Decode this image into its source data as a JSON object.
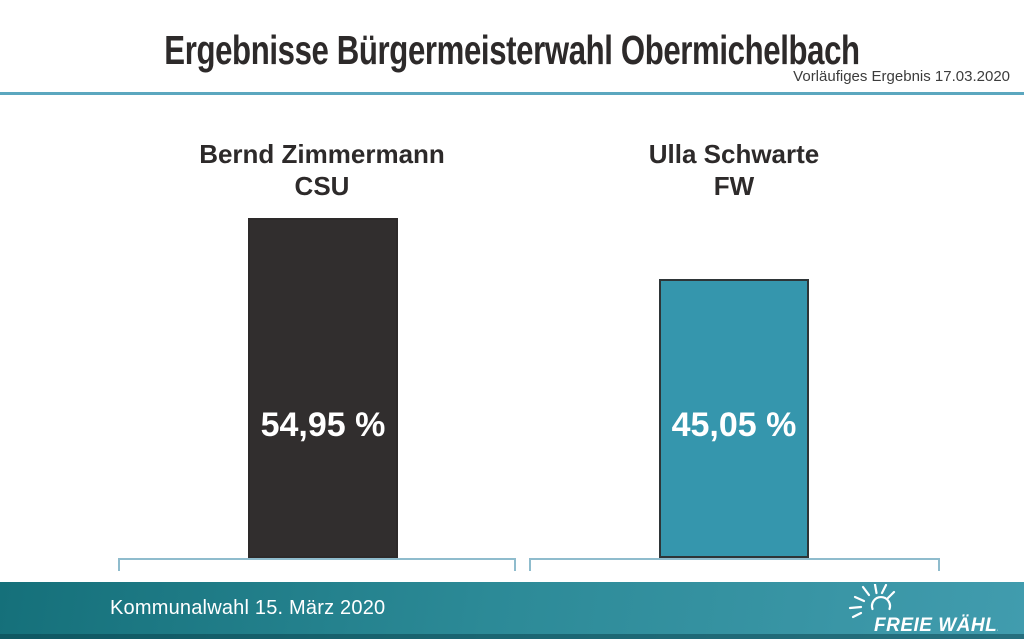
{
  "header": {
    "title": "Ergebnisse Bürgermeisterwahl Obermichelbach",
    "subtitle": "Vorläufiges Ergebnis 17.03.2020"
  },
  "chart_data": {
    "type": "bar",
    "title": "Ergebnisse Bürgermeisterwahl Obermichelbach",
    "categories": [
      "Bernd Zimmermann CSU",
      "Ulla Schwarte FW"
    ],
    "values": [
      54.95,
      45.05
    ],
    "bars": [
      {
        "name": "Bernd Zimmermann",
        "party": "CSU",
        "value": 54.95,
        "label": "54,95 %",
        "color": "#312e2e"
      },
      {
        "name": "Ulla Schwarte",
        "party": "FW",
        "value": 45.05,
        "label": "45,05 %",
        "color": "#3596ad"
      }
    ],
    "xlabel": "",
    "ylabel": "",
    "ylim": [
      0,
      60
    ],
    "grid": false,
    "legend": "none",
    "axis_style": "category brackets below bars, no value axis"
  },
  "footer": {
    "caption": "Kommunalwahl 15. März 2020",
    "logo_text": "FREIE WÄHLER",
    "logo_icon": "rising-sun-icon"
  },
  "colors": {
    "title_text": "#2d2a2a",
    "header_rule": "#5ba7bf",
    "bar_dark": "#312e2e",
    "bar_teal": "#3596ad",
    "axis_bracket": "#8fbccd",
    "footer_gradient_left": "#15707a",
    "footer_gradient_right": "#419cae",
    "value_text": "#ffffff"
  }
}
